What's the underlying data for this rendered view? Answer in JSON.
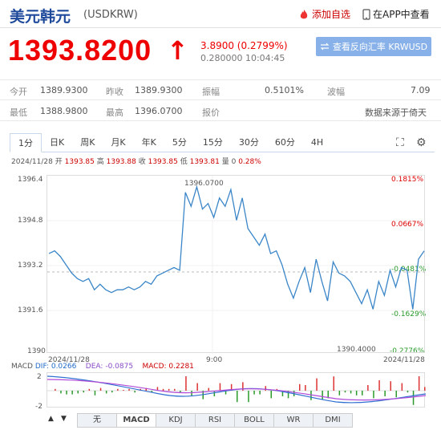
{
  "header": {
    "title": "美元韩元",
    "code": "(USDKRW)",
    "add_watchlist": "添加自选",
    "app_view": "在APP中查看"
  },
  "quote": {
    "price": "1393.8200",
    "change": "3.8900 (0.2799%)",
    "sub": "0.280000 10:04:45",
    "reverse_button": "查看反向汇率 KRWUSD"
  },
  "stats": {
    "open_label": "今开",
    "open": "1389.9300",
    "prev_close_label": "昨收",
    "prev_close": "1389.9300",
    "amplitude_label": "振幅",
    "amplitude": "0.5101%",
    "swing_label": "波幅",
    "swing": "7.09",
    "low_label": "最低",
    "low": "1388.9800",
    "high_label": "最高",
    "high": "1396.0700",
    "quote_label": "报价",
    "quote": "",
    "source": "数据来源于倚天"
  },
  "tabs": [
    "1分",
    "日K",
    "周K",
    "月K",
    "年K",
    "5分",
    "15分",
    "30分",
    "60分",
    "4H"
  ],
  "info_line": {
    "date": "2024/11/28",
    "open_label": "开",
    "open": "1393.85",
    "high_label": "高",
    "high": "1393.88",
    "close_label": "收",
    "close": "1393.85",
    "low_label": "低",
    "low": "1393.81",
    "vol_label": "量",
    "vol": "0",
    "pct": "0.28%"
  },
  "chart_data": {
    "type": "line",
    "y_ticks": [
      "1396.4",
      "1394.8",
      "1393.2",
      "1391.6",
      "1390"
    ],
    "pct_ticks": [
      "0.1815%",
      "0.0667%",
      "-0.0481%",
      "-0.1629%",
      "-0.2776%"
    ],
    "x_labels": [
      "2024/11/28",
      "9:00",
      "2024/11/28"
    ],
    "ylim": [
      1390,
      1396.4
    ],
    "high_annotation": "1396.0700",
    "low_annotation": "1390.4000",
    "series": [
      {
        "values": [
          1393.6,
          1393.7,
          1393.5,
          1393.2,
          1392.9,
          1392.7,
          1392.6,
          1392.7,
          1392.3,
          1392.5,
          1392.3,
          1392.2,
          1392.3,
          1392.3,
          1392.4,
          1392.3,
          1392.4,
          1392.6,
          1392.5,
          1392.8,
          1392.9,
          1393.0,
          1393.1,
          1393.0,
          1395.8,
          1395.3,
          1396.0,
          1395.2,
          1395.4,
          1394.9,
          1395.6,
          1395.3,
          1395.9,
          1394.8,
          1395.6,
          1394.5,
          1394.2,
          1393.9,
          1394.3,
          1393.6,
          1393.7,
          1393.2,
          1392.5,
          1392.0,
          1392.6,
          1393.1,
          1392.2,
          1393.4,
          1392.6,
          1391.9,
          1393.3,
          1392.9,
          1392.8,
          1392.6,
          1392.2,
          1391.8,
          1392.3,
          1391.6,
          1392.6,
          1392.1,
          1393.0,
          1392.4,
          1393.1,
          1393.0,
          1391.6,
          1393.4,
          1393.7
        ]
      }
    ]
  },
  "macd": {
    "label": "MACD",
    "dif_label": "DIF:",
    "dif": "0.0266",
    "dea_label": "DEA:",
    "dea": "-0.0875",
    "macd_label": "MACD:",
    "macd": "0.2281",
    "y_top": "2",
    "y_bottom": "-2"
  },
  "indicator_tabs": [
    "无",
    "MACD",
    "KDJ",
    "RSI",
    "BOLL",
    "WR",
    "DMI"
  ],
  "colors": {
    "accent": "#e00000",
    "line": "#3a86c8",
    "brand": "#1f4a9c"
  }
}
